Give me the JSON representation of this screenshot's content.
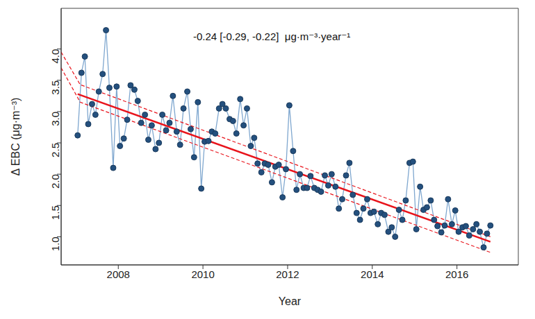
{
  "chart_data": {
    "type": "line",
    "annotation": "-0.24 [-0.29, -0.22]  μg·m⁻³·year⁻¹",
    "x_label": "Year",
    "y_label": "Δ EBC (μg·m⁻³)",
    "xlim": [
      2006.65,
      2017.45
    ],
    "xticks": [
      2008,
      2010,
      2012,
      2014,
      2016
    ],
    "ylim": [
      0.55,
      4.65
    ],
    "yticks": [
      {
        "value": 1,
        "label": "1.0"
      },
      {
        "value": 1.5,
        "label": "1.5"
      },
      {
        "value": 2,
        "label": "2.0"
      },
      {
        "value": 2.5,
        "label": "2.5"
      },
      {
        "value": 3,
        "label": "3.0"
      },
      {
        "value": 3.5,
        "label": "3.5"
      },
      {
        "value": 4,
        "label": "4.0"
      }
    ],
    "grid": false,
    "series": [
      {
        "color": "#7fa7cf",
        "marker": "circle",
        "line_style": "solid",
        "x": [
          2007.04,
          2007.13,
          2007.21,
          2007.29,
          2007.38,
          2007.46,
          2007.54,
          2007.63,
          2007.71,
          2007.79,
          2007.88,
          2007.96,
          2008.04,
          2008.13,
          2008.21,
          2008.29,
          2008.38,
          2008.46,
          2008.54,
          2008.63,
          2008.71,
          2008.79,
          2008.88,
          2008.96,
          2009.04,
          2009.13,
          2009.21,
          2009.29,
          2009.38,
          2009.46,
          2009.54,
          2009.63,
          2009.71,
          2009.79,
          2009.88,
          2009.96,
          2010.04,
          2010.13,
          2010.21,
          2010.29,
          2010.38,
          2010.46,
          2010.54,
          2010.63,
          2010.71,
          2010.79,
          2010.88,
          2010.96,
          2011.04,
          2011.13,
          2011.21,
          2011.29,
          2011.38,
          2011.46,
          2011.54,
          2011.63,
          2011.71,
          2011.79,
          2011.88,
          2011.96,
          2012.04,
          2012.13,
          2012.21,
          2012.29,
          2012.38,
          2012.46,
          2012.54,
          2012.63,
          2012.71,
          2012.79,
          2012.88,
          2012.96,
          2013.04,
          2013.13,
          2013.21,
          2013.29,
          2013.38,
          2013.46,
          2013.54,
          2013.63,
          2013.71,
          2013.79,
          2013.88,
          2013.96,
          2014.04,
          2014.13,
          2014.21,
          2014.29,
          2014.38,
          2014.46,
          2014.54,
          2014.63,
          2014.71,
          2014.79,
          2014.88,
          2014.96,
          2015.04,
          2015.13,
          2015.21,
          2015.29,
          2015.38,
          2015.46,
          2015.54,
          2015.63,
          2015.71,
          2015.79,
          2015.88,
          2015.96,
          2016.04,
          2016.13,
          2016.21,
          2016.29,
          2016.38,
          2016.46,
          2016.54,
          2016.63,
          2016.71,
          2016.79
        ],
        "values": [
          2.62,
          3.62,
          3.88,
          2.8,
          3.12,
          2.95,
          3.32,
          3.6,
          4.3,
          3.38,
          2.1,
          3.4,
          2.45,
          2.57,
          2.87,
          3.42,
          3.35,
          3.17,
          2.82,
          2.95,
          2.55,
          2.78,
          2.4,
          2.5,
          2.95,
          2.7,
          2.82,
          3.25,
          2.68,
          2.47,
          3.05,
          3.32,
          2.72,
          2.27,
          3.15,
          1.77,
          2.52,
          2.53,
          2.68,
          2.65,
          3.05,
          3.12,
          3.05,
          2.88,
          2.85,
          2.65,
          3.2,
          2.78,
          3.05,
          2.45,
          2.58,
          2.17,
          2.03,
          2.17,
          2.15,
          1.87,
          2.12,
          2.15,
          1.63,
          2.08,
          3.1,
          2.37,
          1.75,
          2.0,
          1.78,
          1.78,
          1.97,
          1.78,
          1.75,
          1.72,
          1.98,
          1.82,
          2.0,
          1.8,
          1.45,
          1.6,
          1.98,
          2.18,
          1.67,
          1.38,
          1.27,
          1.45,
          1.6,
          1.38,
          1.4,
          1.2,
          1.38,
          1.35,
          1.08,
          1.15,
          1.0,
          1.43,
          1.27,
          1.58,
          2.18,
          2.2,
          1.12,
          1.8,
          1.43,
          1.47,
          1.58,
          1.27,
          1.17,
          1.07,
          1.18,
          1.6,
          1.2,
          1.42,
          1.08,
          1.15,
          1.17,
          1.02,
          1.12,
          1.2,
          1.08,
          0.83,
          1.05,
          1.18
        ]
      },
      {
        "color": "#e8141c",
        "line_style": "solid",
        "marker": "none",
        "x": [
          2007.04,
          2016.79
        ],
        "values": [
          3.28,
          0.92
        ]
      },
      {
        "color": "#e8141c",
        "line_style": "dashed",
        "marker": "none",
        "x": [
          2006.65,
          2007.1,
          2016.79
        ],
        "values": [
          3.95,
          3.43,
          1.0
        ]
      },
      {
        "color": "#e8141c",
        "line_style": "dashed",
        "marker": "none",
        "x": [
          2006.65,
          2007.1,
          2016.79
        ],
        "values": [
          3.7,
          3.15,
          0.75
        ]
      }
    ]
  }
}
